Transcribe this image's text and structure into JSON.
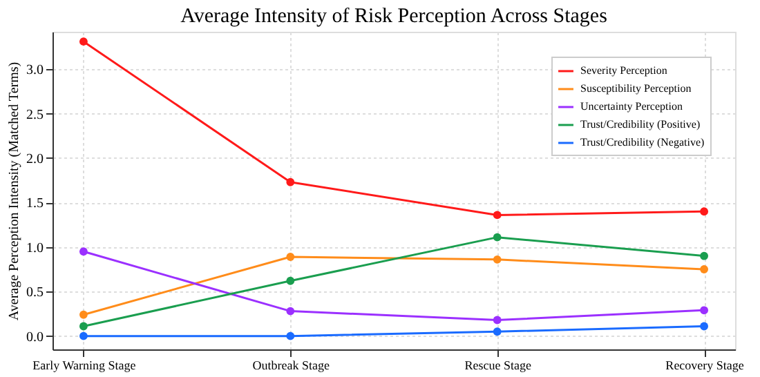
{
  "chart_data": {
    "type": "line",
    "title": "Average Intensity of Risk Perception Across Stages",
    "ylabel": "Average Perception Intensity (Matched Terms)",
    "categories": [
      "Early Warning Stage",
      "Outbreak Stage",
      "Rescue Stage",
      "Recovery Stage"
    ],
    "series": [
      {
        "name": "Severity Perception",
        "color": "#ff1a1a",
        "values": [
          3.31,
          1.73,
          1.36,
          1.4
        ]
      },
      {
        "name": "Susceptibility Perception",
        "color": "#ff8c1a",
        "values": [
          0.24,
          0.89,
          0.86,
          0.75
        ]
      },
      {
        "name": "Uncertainty Perception",
        "color": "#9b30ff",
        "values": [
          0.95,
          0.28,
          0.18,
          0.29
        ]
      },
      {
        "name": "Trust/Credibility (Positive)",
        "color": "#1a9e4f",
        "values": [
          0.11,
          0.62,
          1.11,
          0.9
        ]
      },
      {
        "name": "Trust/Credibility (Negative)",
        "color": "#1a6bff",
        "values": [
          0.0,
          0.0,
          0.05,
          0.11
        ]
      }
    ],
    "ylim": [
      -0.15,
      3.42
    ],
    "yticks": [
      {
        "value": 0,
        "label": "0.0"
      },
      0.5,
      {
        "value": 1,
        "label": "1.0"
      },
      1.5,
      {
        "value": 2,
        "label": "2.0"
      },
      2.5,
      {
        "value": 3,
        "label": "3.0"
      }
    ],
    "grid": true,
    "legend": "top right",
    "marker": "circle",
    "line_style": "solid"
  }
}
